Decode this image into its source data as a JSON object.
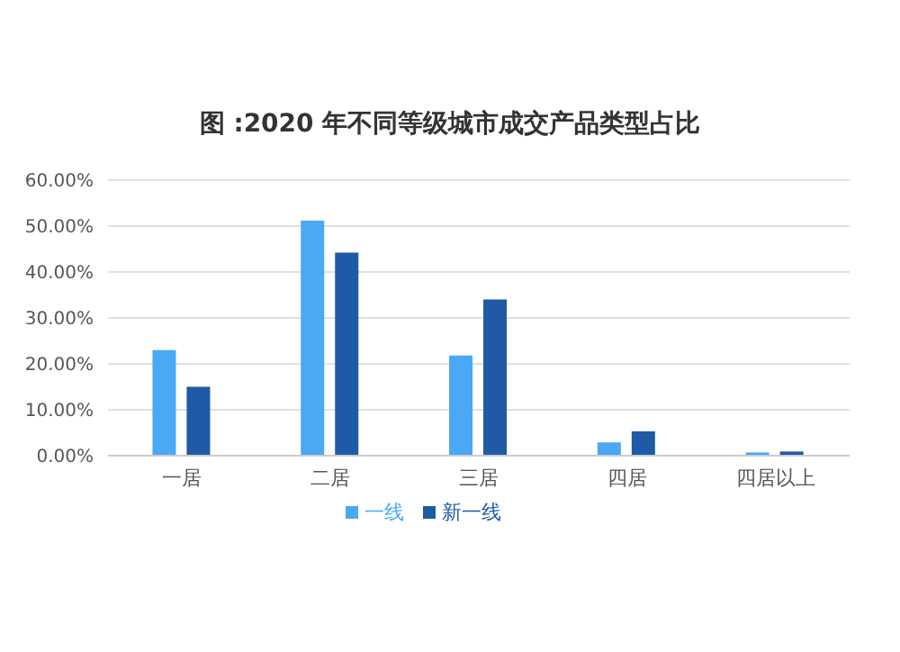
{
  "chart_data": {
    "type": "bar",
    "title": "图 :2020 年不同等级城市成交产品类型占比",
    "categories": [
      "一居",
      "二居",
      "三居",
      "四居",
      "四居以上"
    ],
    "series": [
      {
        "name": "一线",
        "color": "#4aa8f5",
        "values": [
          23.0,
          51.2,
          21.8,
          2.9,
          0.7
        ]
      },
      {
        "name": "新一线",
        "color": "#1f5aa6",
        "values": [
          15.0,
          44.2,
          34.0,
          5.3,
          0.9
        ]
      }
    ],
    "ylim": [
      0,
      60
    ],
    "yticks": [
      {
        "value": 0,
        "label": "0.00%"
      },
      {
        "value": 10,
        "label": "10.00%"
      },
      {
        "value": 20,
        "label": "20.00%"
      },
      {
        "value": 30,
        "label": "30.00%"
      },
      {
        "value": 40,
        "label": "40.00%"
      },
      {
        "value": 50,
        "label": "50.00%"
      },
      {
        "value": 60,
        "label": "60.00%"
      }
    ],
    "grid": "y",
    "legend": "bottom"
  }
}
